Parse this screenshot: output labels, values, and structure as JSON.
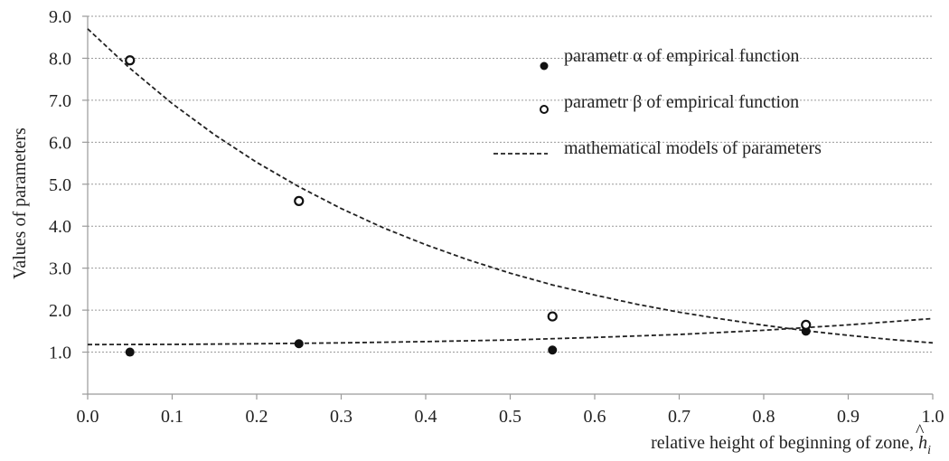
{
  "chart_data": {
    "type": "scatter",
    "xlabel": "relative height of beginning of zone, ",
    "xlabel_symbol": "h",
    "xlabel_symbol_hat": "^",
    "xlabel_subscript": "i",
    "ylabel": "Values of parameters",
    "xlim": [
      0.0,
      1.0
    ],
    "ylim": [
      0.0,
      9.0
    ],
    "xticks": [
      {
        "v": 0.0,
        "label": "0.0"
      },
      {
        "v": 0.1,
        "label": "0.1"
      },
      {
        "v": 0.2,
        "label": "0.2"
      },
      {
        "v": 0.3,
        "label": "0.3"
      },
      {
        "v": 0.4,
        "label": "0.4"
      },
      {
        "v": 0.5,
        "label": "0.5"
      },
      {
        "v": 0.6,
        "label": "0.6"
      },
      {
        "v": 0.7,
        "label": "0.7"
      },
      {
        "v": 0.8,
        "label": "0.8"
      },
      {
        "v": 0.9,
        "label": "0.9"
      },
      {
        "v": 1.0,
        "label": "1.0"
      }
    ],
    "yticks": [
      {
        "v": 1.0,
        "label": "1.0"
      },
      {
        "v": 2.0,
        "label": "2.0"
      },
      {
        "v": 3.0,
        "label": "3.0"
      },
      {
        "v": 4.0,
        "label": "4.0"
      },
      {
        "v": 5.0,
        "label": "5.0"
      },
      {
        "v": 6.0,
        "label": "6.0"
      },
      {
        "v": 7.0,
        "label": "7.0"
      },
      {
        "v": 8.0,
        "label": "8.0"
      },
      {
        "v": 9.0,
        "label": "9.0"
      }
    ],
    "grid": true,
    "series": [
      {
        "name": "parametr α of empirical function",
        "marker": "filled-circle",
        "color": "#111111",
        "points": [
          {
            "x": 0.05,
            "y": 1.0
          },
          {
            "x": 0.25,
            "y": 1.2
          },
          {
            "x": 0.55,
            "y": 1.05
          },
          {
            "x": 0.85,
            "y": 1.5
          }
        ]
      },
      {
        "name": "parametr β of empirical function",
        "marker": "open-circle",
        "color": "#111111",
        "points": [
          {
            "x": 0.05,
            "y": 7.95
          },
          {
            "x": 0.25,
            "y": 4.6
          },
          {
            "x": 0.55,
            "y": 1.85
          },
          {
            "x": 0.85,
            "y": 1.65
          }
        ]
      },
      {
        "name": "mathematical models of parameters",
        "marker": "dashed-line",
        "color": "#222222",
        "curves": [
          {
            "x": [
              0.0,
              0.05,
              0.1,
              0.15,
              0.2,
              0.25,
              0.3,
              0.35,
              0.4,
              0.45,
              0.5,
              0.55,
              0.6,
              0.65,
              0.7,
              0.75,
              0.8,
              0.85,
              0.9,
              0.95,
              1.0
            ],
            "y": [
              8.7,
              7.76,
              6.92,
              6.18,
              5.52,
              4.94,
              4.42,
              3.96,
              3.56,
              3.2,
              2.88,
              2.6,
              2.36,
              2.14,
              1.95,
              1.79,
              1.64,
              1.51,
              1.4,
              1.3,
              1.22
            ]
          },
          {
            "x": [
              0.0,
              0.1,
              0.2,
              0.3,
              0.4,
              0.5,
              0.6,
              0.7,
              0.8,
              0.9,
              1.0
            ],
            "y": [
              1.18,
              1.185,
              1.2,
              1.22,
              1.25,
              1.29,
              1.35,
              1.42,
              1.52,
              1.65,
              1.8
            ]
          }
        ]
      }
    ],
    "legend": {
      "position": "top-right",
      "items": [
        {
          "label": "parametr α of empirical function",
          "marker": "filled-circle"
        },
        {
          "label": "parametr β of empirical function",
          "marker": "open-circle"
        },
        {
          "label": "mathematical models of parameters",
          "marker": "dashed-line"
        }
      ]
    }
  }
}
